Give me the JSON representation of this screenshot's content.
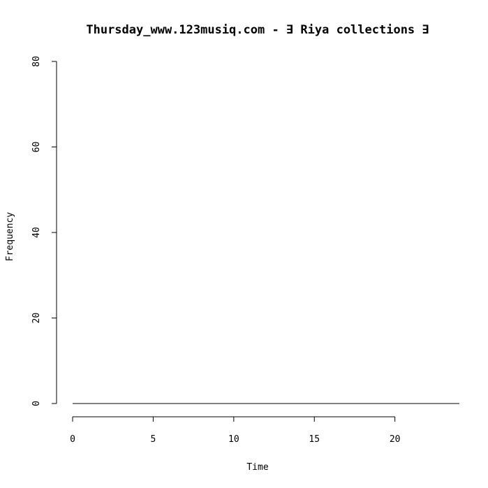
{
  "chart_data": {
    "type": "line",
    "title": "Thursday_www.123musiq.com -  ∃ Riya collections ∃",
    "xlabel": "Time",
    "ylabel": "Frequency",
    "xlim": [
      0,
      24
    ],
    "ylim": [
      0,
      80
    ],
    "x_ticks": [
      "0",
      "5",
      "10",
      "15",
      "20"
    ],
    "y_ticks": [
      "0",
      "20",
      "40",
      "60",
      "80"
    ],
    "series": [
      {
        "x": [
          0,
          24
        ],
        "y": [
          0,
          0
        ]
      }
    ],
    "grid": false,
    "legend": "none"
  }
}
